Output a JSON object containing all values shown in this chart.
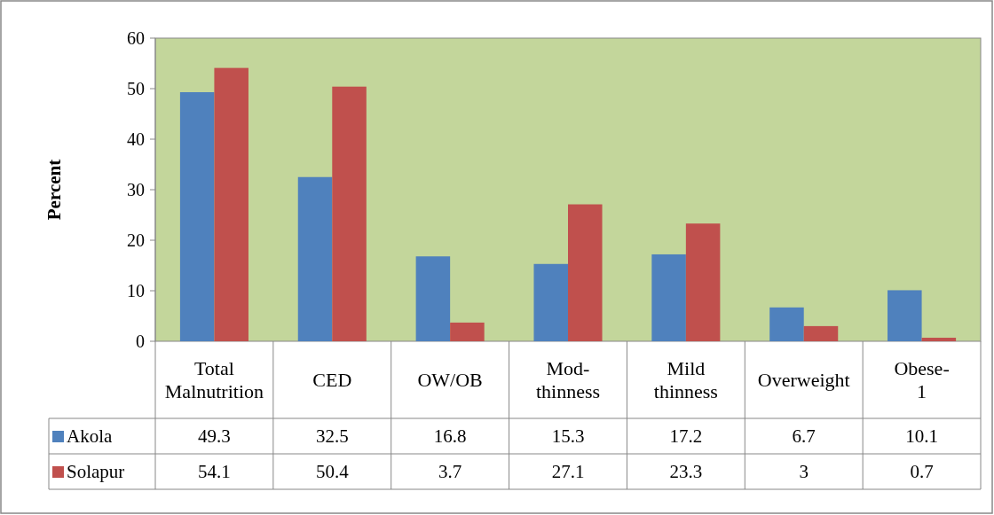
{
  "chart_data": {
    "type": "bar",
    "ylabel": "Percent",
    "categories": [
      "Total Malnutrition",
      "CED",
      "OW/OB",
      "Mod-thinness",
      "Mild thinness",
      "Overweight",
      "Obese-1"
    ],
    "series": [
      {
        "name": "Akola",
        "color": "#4f81bd",
        "values": [
          49.3,
          32.5,
          16.8,
          15.3,
          17.2,
          6.7,
          10.1
        ]
      },
      {
        "name": "Solapur",
        "color": "#c0504d",
        "values": [
          54.1,
          50.4,
          3.7,
          27.1,
          23.3,
          3,
          0.7
        ]
      }
    ],
    "ylim": [
      0,
      60
    ],
    "yticks": [
      0,
      10,
      20,
      30,
      40,
      50,
      60
    ],
    "grid": false,
    "legend": "bottom",
    "data_labels": true
  }
}
